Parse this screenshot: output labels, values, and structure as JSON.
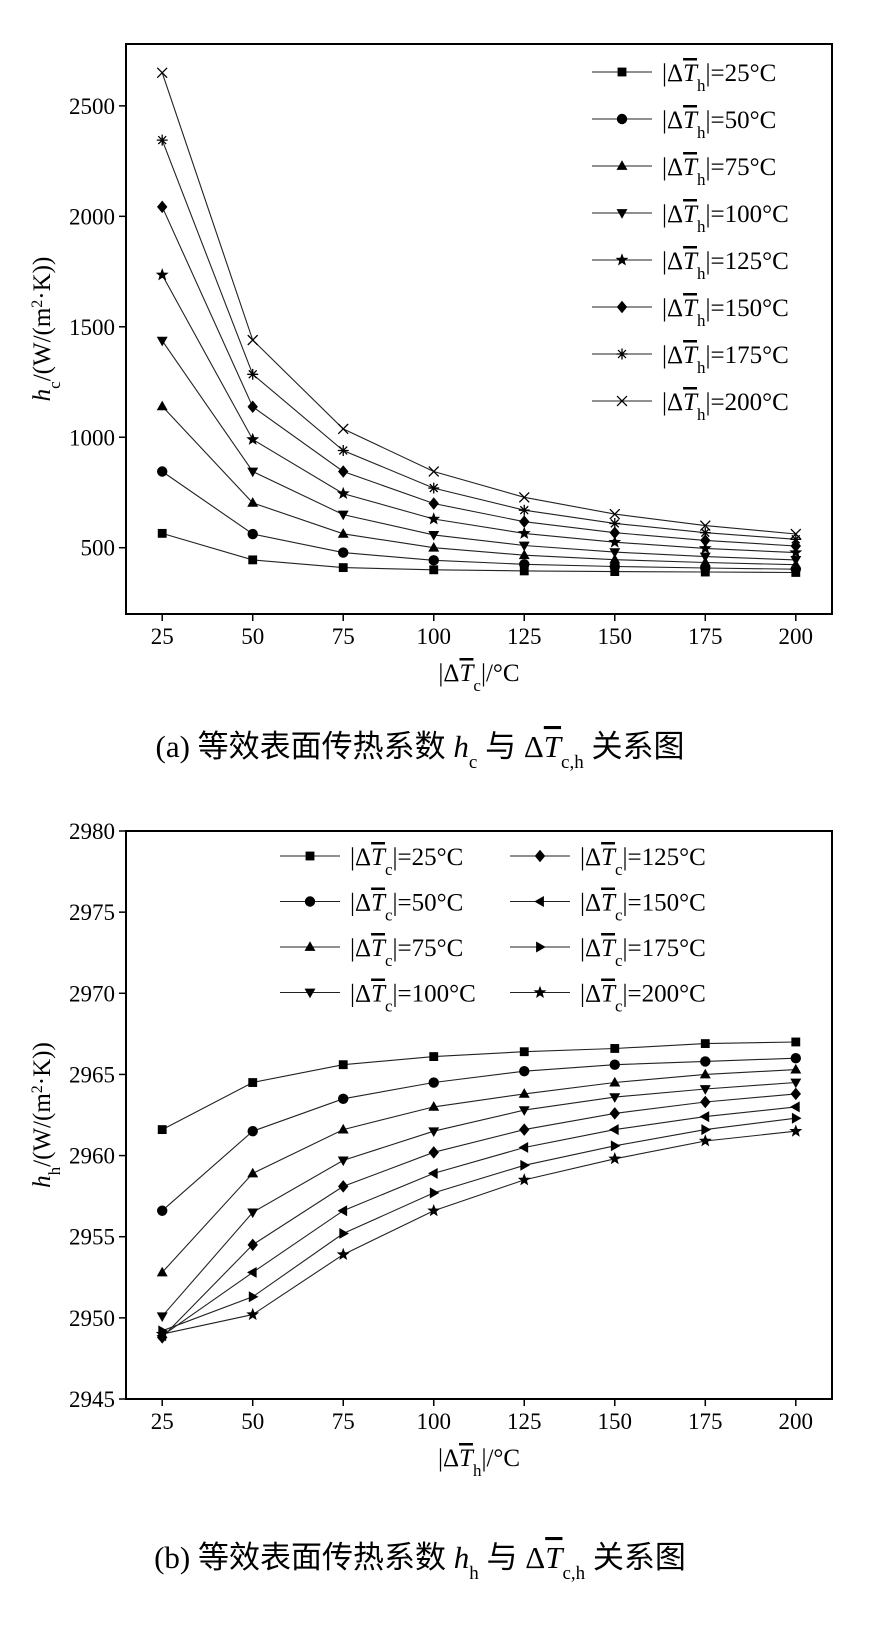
{
  "charts": [
    {
      "id": "a",
      "type": "line",
      "caption": {
        "prefix": "(a) 等效表面传热系数 ",
        "var": "h",
        "var_sub": "c",
        "mid": " 与 ",
        "delta": "Δ",
        "T": "T",
        "T_sub": "c,h",
        "suffix": " 关系图"
      },
      "xlabel": {
        "pre": "|Δ",
        "T": "T",
        "sub": "c",
        "post": "|/°C"
      },
      "ylabel": {
        "var": "h",
        "sub": "c",
        "unit_pre": "/(W/(m",
        "sup": "2",
        "unit_post": "·K))"
      },
      "x": [
        25,
        50,
        75,
        100,
        125,
        150,
        175,
        200
      ],
      "xlim": [
        15,
        210
      ],
      "ylim": [
        200,
        2780
      ],
      "xticks": [
        25,
        50,
        75,
        100,
        125,
        150,
        175,
        200
      ],
      "yticks": [
        500,
        1000,
        1500,
        2000,
        2500
      ],
      "legend": {
        "position": "top-right",
        "columns": 1,
        "prefix": "|Δ",
        "T": "T",
        "sub": "h",
        "eq": "|="
      },
      "series": [
        {
          "name": "25°C",
          "marker": "square",
          "values": [
            565,
            445,
            410,
            400,
            395,
            392,
            390,
            388
          ]
        },
        {
          "name": "50°C",
          "marker": "circle",
          "values": [
            845,
            562,
            478,
            443,
            425,
            415,
            408,
            403
          ]
        },
        {
          "name": "75°C",
          "marker": "triangle-up",
          "values": [
            1140,
            703,
            563,
            500,
            466,
            446,
            433,
            423
          ]
        },
        {
          "name": "100°C",
          "marker": "triangle-down",
          "values": [
            1437,
            845,
            650,
            558,
            510,
            480,
            460,
            445
          ]
        },
        {
          "name": "125°C",
          "marker": "star",
          "values": [
            1735,
            990,
            745,
            630,
            565,
            525,
            497,
            478
          ]
        },
        {
          "name": "150°C",
          "marker": "diamond",
          "values": [
            2043,
            1138,
            845,
            700,
            618,
            568,
            533,
            508
          ]
        },
        {
          "name": "175°C",
          "marker": "asterisk",
          "values": [
            2345,
            1285,
            940,
            770,
            670,
            610,
            568,
            538
          ]
        },
        {
          "name": "200°C",
          "marker": "x",
          "values": [
            2650,
            1440,
            1038,
            845,
            728,
            652,
            600,
            562
          ]
        }
      ]
    },
    {
      "id": "b",
      "type": "line",
      "caption": {
        "prefix": "(b) 等效表面传热系数 ",
        "var": "h",
        "var_sub": "h",
        "mid": " 与 ",
        "delta": "Δ",
        "T": "T",
        "T_sub": "c,h",
        "suffix": " 关系图"
      },
      "xlabel": {
        "pre": "|Δ",
        "T": "T",
        "sub": "h",
        "post": "|/°C"
      },
      "ylabel": {
        "var": "h",
        "sub": "h",
        "unit_pre": "/(W/(m",
        "sup": "2",
        "unit_post": "·K))"
      },
      "x": [
        25,
        50,
        75,
        100,
        125,
        150,
        175,
        200
      ],
      "xlim": [
        15,
        210
      ],
      "ylim": [
        2945,
        2980
      ],
      "xticks": [
        25,
        50,
        75,
        100,
        125,
        150,
        175,
        200
      ],
      "yticks": [
        2945,
        2950,
        2955,
        2960,
        2965,
        2970,
        2975,
        2980
      ],
      "legend": {
        "position": "top-right",
        "columns": 2,
        "prefix": "|Δ",
        "T": "T",
        "sub": "c",
        "eq": "|="
      },
      "series": [
        {
          "name": "25°C",
          "marker": "square",
          "values": [
            2961.6,
            2964.5,
            2965.6,
            2966.1,
            2966.4,
            2966.6,
            2966.9,
            2967.0
          ]
        },
        {
          "name": "50°C",
          "marker": "circle",
          "values": [
            2956.6,
            2961.5,
            2963.5,
            2964.5,
            2965.2,
            2965.6,
            2965.8,
            2966.0
          ]
        },
        {
          "name": "75°C",
          "marker": "triangle-up",
          "values": [
            2952.8,
            2958.9,
            2961.6,
            2963.0,
            2963.8,
            2964.5,
            2965.0,
            2965.3
          ]
        },
        {
          "name": "100°C",
          "marker": "triangle-down",
          "values": [
            2950.1,
            2956.5,
            2959.7,
            2961.5,
            2962.8,
            2963.6,
            2964.1,
            2964.5
          ]
        },
        {
          "name": "125°C",
          "marker": "diamond",
          "values": [
            2948.8,
            2954.5,
            2958.1,
            2960.2,
            2961.6,
            2962.6,
            2963.3,
            2963.8
          ]
        },
        {
          "name": "150°C",
          "marker": "triangle-left",
          "values": [
            2948.9,
            2952.8,
            2956.6,
            2958.9,
            2960.5,
            2961.6,
            2962.4,
            2963.0
          ]
        },
        {
          "name": "175°C",
          "marker": "triangle-right",
          "values": [
            2949.2,
            2951.3,
            2955.2,
            2957.7,
            2959.4,
            2960.6,
            2961.6,
            2962.3
          ]
        },
        {
          "name": "200°C",
          "marker": "star",
          "values": [
            2949.0,
            2950.2,
            2953.9,
            2956.6,
            2958.5,
            2959.8,
            2960.9,
            2961.5
          ]
        }
      ]
    }
  ]
}
